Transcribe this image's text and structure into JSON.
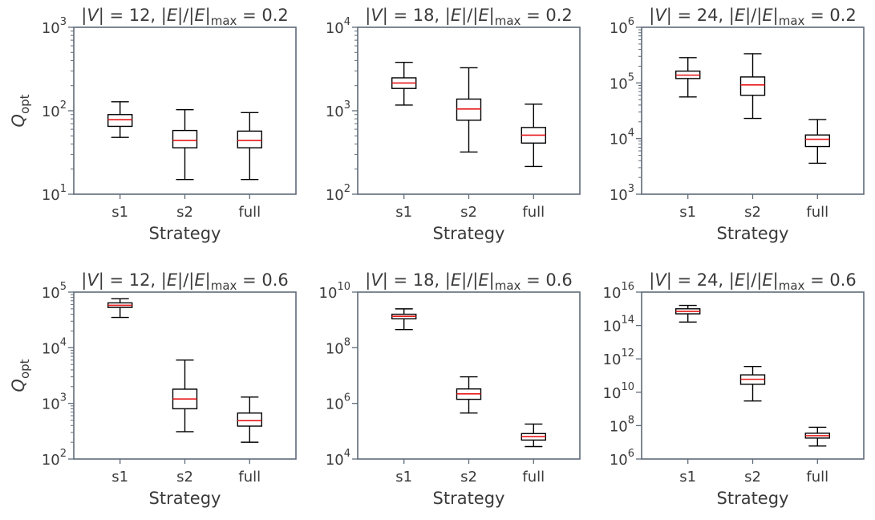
{
  "colors": {
    "axes": "#5f6b78",
    "box": "#000000",
    "median": "#e8191a",
    "text": "#3a3a3a"
  },
  "chart_data": [
    {
      "type": "box",
      "yscale": "log",
      "ylim": [
        10,
        1000
      ],
      "title": "|V| = 12, |E|/|E|max = 0.2",
      "title_parts": {
        "v": "12",
        "ratio": "0.2"
      },
      "xlabel": "Strategy",
      "ylabel": "Q_opt",
      "categories": [
        "s1",
        "s2",
        "full"
      ],
      "yticks": [
        {
          "base": "10",
          "exp": "1"
        },
        {
          "base": "10",
          "exp": "2"
        },
        {
          "base": "10",
          "exp": "3"
        }
      ],
      "boxes": [
        {
          "category": "s1",
          "whislo": 48,
          "q1": 65,
          "med": 78,
          "q3": 90,
          "whishi": 128
        },
        {
          "category": "s2",
          "whislo": 15,
          "q1": 36,
          "med": 44,
          "q3": 58,
          "whishi": 103
        },
        {
          "category": "full",
          "whislo": 15,
          "q1": 36,
          "med": 44,
          "q3": 57,
          "whishi": 95
        }
      ]
    },
    {
      "type": "box",
      "yscale": "log",
      "ylim": [
        100,
        10000
      ],
      "title": "|V| = 18, |E|/|E|max = 0.2",
      "title_parts": {
        "v": "18",
        "ratio": "0.2"
      },
      "xlabel": "Strategy",
      "ylabel": "",
      "categories": [
        "s1",
        "s2",
        "full"
      ],
      "yticks": [
        {
          "base": "10",
          "exp": "2"
        },
        {
          "base": "10",
          "exp": "3"
        },
        {
          "base": "10",
          "exp": "4"
        }
      ],
      "boxes": [
        {
          "category": "s1",
          "whislo": 1170,
          "q1": 1850,
          "med": 2150,
          "q3": 2480,
          "whishi": 3800
        },
        {
          "category": "s2",
          "whislo": 320,
          "q1": 770,
          "med": 1050,
          "q3": 1380,
          "whishi": 3270
        },
        {
          "category": "full",
          "whislo": 215,
          "q1": 410,
          "med": 510,
          "q3": 630,
          "whishi": 1200
        }
      ]
    },
    {
      "type": "box",
      "yscale": "log",
      "ylim": [
        1000,
        1000000
      ],
      "title": "|V| = 24, |E|/|E|max = 0.2",
      "title_parts": {
        "v": "24",
        "ratio": "0.2"
      },
      "xlabel": "Strategy",
      "ylabel": "",
      "categories": [
        "s1",
        "s2",
        "full"
      ],
      "yticks": [
        {
          "base": "10",
          "exp": "3"
        },
        {
          "base": "10",
          "exp": "4"
        },
        {
          "base": "10",
          "exp": "5"
        },
        {
          "base": "10",
          "exp": "6"
        }
      ],
      "boxes": [
        {
          "category": "s1",
          "whislo": 56000,
          "q1": 120000,
          "med": 138000,
          "q3": 163000,
          "whishi": 285000
        },
        {
          "category": "s2",
          "whislo": 23000,
          "q1": 60000,
          "med": 92000,
          "q3": 128000,
          "whishi": 335000
        },
        {
          "category": "full",
          "whislo": 3600,
          "q1": 7200,
          "med": 9700,
          "q3": 11600,
          "whishi": 22000
        }
      ]
    },
    {
      "type": "box",
      "yscale": "log",
      "ylim": [
        100,
        100000
      ],
      "title": "|V| = 12, |E|/|E|max = 0.6",
      "title_parts": {
        "v": "12",
        "ratio": "0.6"
      },
      "xlabel": "Strategy",
      "ylabel": "Q_opt",
      "categories": [
        "s1",
        "s2",
        "full"
      ],
      "yticks": [
        {
          "base": "10",
          "exp": "2"
        },
        {
          "base": "10",
          "exp": "3"
        },
        {
          "base": "10",
          "exp": "4"
        },
        {
          "base": "10",
          "exp": "5"
        }
      ],
      "boxes": [
        {
          "category": "s1",
          "whislo": 35000,
          "q1": 53000,
          "med": 58000,
          "q3": 64000,
          "whishi": 76000
        },
        {
          "category": "s2",
          "whislo": 310,
          "q1": 800,
          "med": 1200,
          "q3": 1800,
          "whishi": 6000
        },
        {
          "category": "full",
          "whislo": 200,
          "q1": 390,
          "med": 490,
          "q3": 670,
          "whishi": 1300
        }
      ]
    },
    {
      "type": "box",
      "yscale": "log",
      "ylim": [
        10000,
        10000000000
      ],
      "title": "|V| = 18, |E|/|E|max = 0.6",
      "title_parts": {
        "v": "18",
        "ratio": "0.6"
      },
      "xlabel": "Strategy",
      "ylabel": "",
      "categories": [
        "s1",
        "s2",
        "full"
      ],
      "yticks": [
        {
          "base": "10",
          "exp": "4"
        },
        {
          "base": "10",
          "exp": "6"
        },
        {
          "base": "10",
          "exp": "8"
        },
        {
          "base": "10",
          "exp": "10"
        }
      ],
      "boxes": [
        {
          "category": "s1",
          "whislo": 450000000,
          "q1": 1100000000,
          "med": 1350000000,
          "q3": 1600000000,
          "whishi": 2500000000
        },
        {
          "category": "s2",
          "whislo": 450000,
          "q1": 1400000,
          "med": 2200000,
          "q3": 3300000,
          "whishi": 9000000
        },
        {
          "category": "full",
          "whislo": 28000,
          "q1": 48000,
          "med": 64000,
          "q3": 82000,
          "whishi": 180000
        }
      ]
    },
    {
      "type": "box",
      "yscale": "log",
      "ylim": [
        1000000,
        10000000000000000
      ],
      "title": "|V| = 24, |E|/|E|max = 0.6",
      "title_parts": {
        "v": "24",
        "ratio": "0.6"
      },
      "xlabel": "Strategy",
      "ylabel": "",
      "categories": [
        "s1",
        "s2",
        "full"
      ],
      "yticks": [
        {
          "base": "10",
          "exp": "6"
        },
        {
          "base": "10",
          "exp": "8"
        },
        {
          "base": "10",
          "exp": "10"
        },
        {
          "base": "10",
          "exp": "12"
        },
        {
          "base": "10",
          "exp": "14"
        },
        {
          "base": "10",
          "exp": "16"
        }
      ],
      "boxes": [
        {
          "category": "s1",
          "whislo": 160000000000000,
          "q1": 500000000000000,
          "med": 700000000000000,
          "q3": 1000000000000000,
          "whishi": 1600000000000000
        },
        {
          "category": "s2",
          "whislo": 3000000000,
          "q1": 30000000000,
          "med": 60000000000,
          "q3": 110000000000,
          "whishi": 350000000000
        },
        {
          "category": "full",
          "whislo": 6000000,
          "q1": 18000000,
          "med": 25000000,
          "q3": 35000000,
          "whishi": 80000000
        }
      ]
    }
  ]
}
